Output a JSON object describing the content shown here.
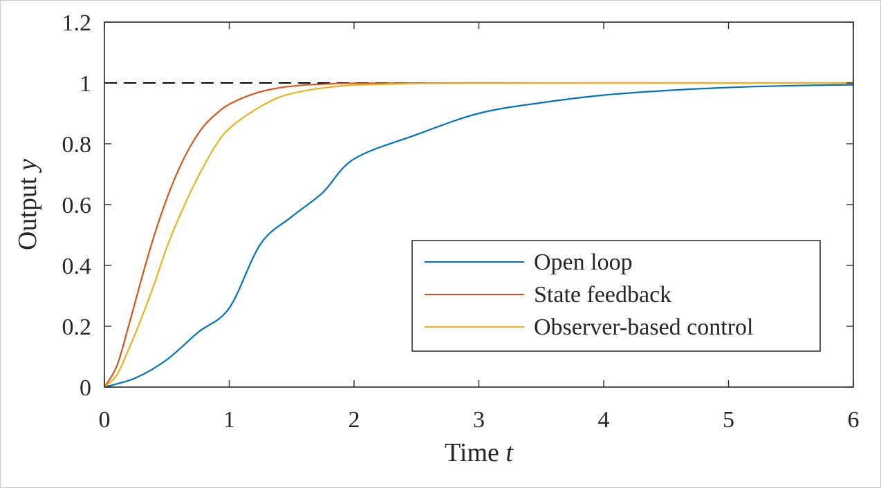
{
  "chart_data": {
    "type": "line",
    "xlabel": {
      "text": "Time ",
      "var": "t"
    },
    "ylabel": {
      "text": "Output ",
      "var": "y"
    },
    "xlim": [
      0,
      6
    ],
    "ylim": [
      0,
      1.2
    ],
    "xticks": [
      0,
      1,
      2,
      3,
      4,
      5,
      6
    ],
    "yticks": [
      0,
      0.2,
      0.4,
      0.6,
      0.8,
      1,
      1.2
    ],
    "xtick_labels": [
      "0",
      "1",
      "2",
      "3",
      "4",
      "5",
      "6"
    ],
    "ytick_labels": [
      "0",
      "0.2",
      "0.4",
      "0.6",
      "0.8",
      "1",
      "1.2"
    ],
    "grid": false,
    "legend_placement": "lower-right",
    "reference_line": {
      "y": 1,
      "style": "dashed",
      "color": "#000000"
    },
    "series": [
      {
        "name": "Open loop",
        "color": "#0072BD",
        "x": [
          0,
          0.25,
          0.5,
          0.75,
          1,
          1.25,
          1.5,
          1.75,
          2,
          2.5,
          3,
          3.5,
          4,
          4.5,
          5,
          5.5,
          6
        ],
        "y": [
          0,
          0.03,
          0.09,
          0.18,
          0.26,
          0.47,
          0.56,
          0.64,
          0.75,
          0.83,
          0.9,
          0.935,
          0.96,
          0.975,
          0.985,
          0.991,
          0.994
        ]
      },
      {
        "name": "State feedback",
        "color": "#D95319",
        "x": [
          0,
          0.1,
          0.2,
          0.3,
          0.4,
          0.5,
          0.6,
          0.7,
          0.8,
          0.9,
          1,
          1.2,
          1.4,
          1.6,
          1.8,
          2,
          3,
          4,
          5,
          6
        ],
        "y": [
          0,
          0.07,
          0.21,
          0.36,
          0.5,
          0.62,
          0.72,
          0.8,
          0.86,
          0.9,
          0.93,
          0.965,
          0.984,
          0.993,
          0.997,
          0.999,
          1,
          1,
          1,
          1
        ]
      },
      {
        "name": "Observer-based control",
        "color": "#EDB120",
        "x": [
          0,
          0.1,
          0.2,
          0.3,
          0.4,
          0.5,
          0.6,
          0.7,
          0.8,
          0.9,
          1,
          1.2,
          1.4,
          1.6,
          1.8,
          2,
          2.5,
          3,
          4,
          5,
          6
        ],
        "y": [
          0,
          0.04,
          0.13,
          0.23,
          0.34,
          0.46,
          0.56,
          0.65,
          0.73,
          0.8,
          0.85,
          0.91,
          0.953,
          0.974,
          0.986,
          0.993,
          0.998,
          0.999,
          1,
          1,
          1
        ]
      }
    ]
  }
}
